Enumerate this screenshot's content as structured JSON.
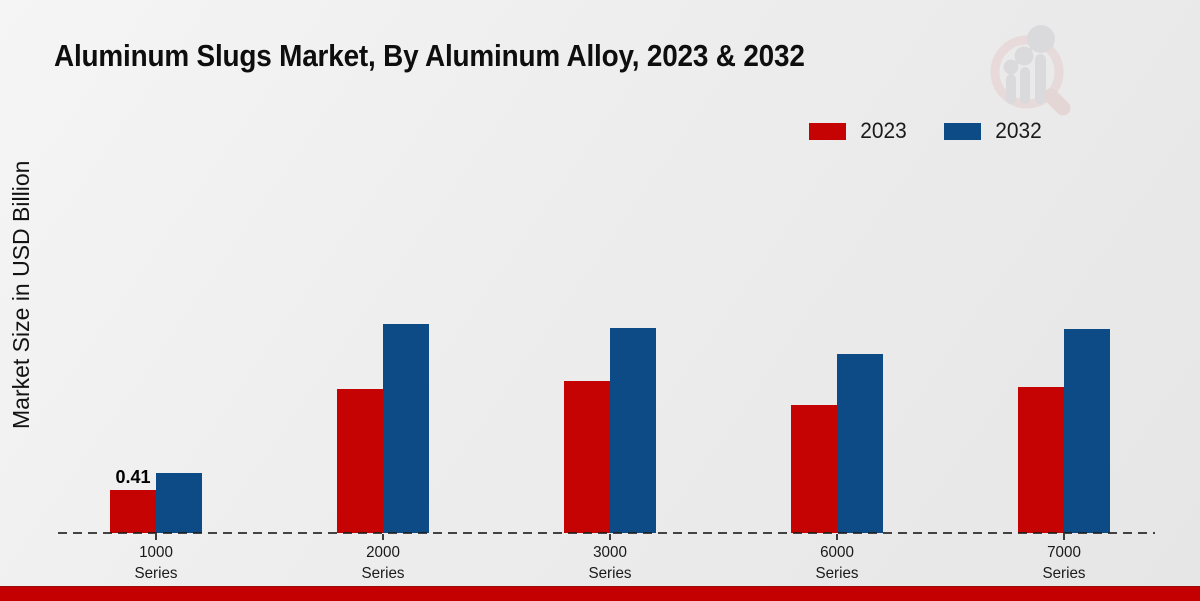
{
  "title": "Aluminum Slugs Market, By Aluminum Alloy, 2023 & 2032",
  "y_axis_label": "Market Size in USD Billion",
  "legend": [
    {
      "label": "2023",
      "color": "#c50303"
    },
    {
      "label": "2032",
      "color": "#0d4b87"
    }
  ],
  "colors": {
    "series_2023": "#c50303",
    "series_2032": "#0d4b87",
    "footer_stripe": "#c40000",
    "axis_line": "#1a1a1a",
    "background": "#ececec"
  },
  "icons": {
    "brand_logo": "magnifier-bar-chart-logo"
  },
  "chart_data": {
    "type": "bar",
    "title": "Aluminum Slugs Market, By Aluminum Alloy, 2023 & 2032",
    "ylabel": "Market Size in USD Billion",
    "xlabel": "",
    "categories": [
      "1000 Series",
      "2000 Series",
      "3000 Series",
      "6000 Series",
      "7000 Series"
    ],
    "series": [
      {
        "name": "2023",
        "color": "#c50303",
        "values": [
          0.41,
          1.38,
          1.46,
          1.23,
          1.4
        ]
      },
      {
        "name": "2032",
        "color": "#0d4b87",
        "values": [
          0.58,
          2.01,
          1.97,
          1.72,
          1.96
        ]
      }
    ],
    "value_labels": [
      {
        "series_index": 0,
        "category_index": 0,
        "text": "0.41"
      }
    ],
    "ylim": [
      0,
      4.1
    ],
    "grid": false,
    "axis_style": "dashed-baseline-only",
    "legend_position": "top-right"
  }
}
